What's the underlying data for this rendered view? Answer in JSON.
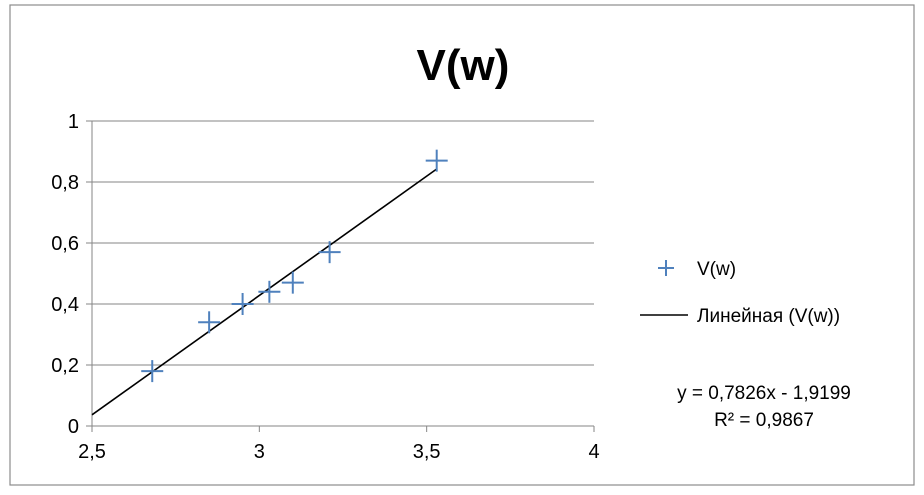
{
  "chart_data": {
    "type": "scatter",
    "title": "V(w)",
    "xlabel": "",
    "ylabel": "",
    "xlim": [
      2.5,
      4
    ],
    "ylim": [
      0,
      1
    ],
    "x_ticks": [
      2.5,
      3,
      3.5,
      4
    ],
    "x_tick_labels": [
      "2,5",
      "3",
      "3,5",
      "4"
    ],
    "y_ticks": [
      0,
      0.2,
      0.4,
      0.6,
      0.8,
      1
    ],
    "y_tick_labels": [
      "0",
      "0,2",
      "0,4",
      "0,6",
      "0,8",
      "1"
    ],
    "grid": "horizontal",
    "legend_position": "right",
    "series": [
      {
        "name": "V(w)",
        "marker": "plus",
        "color": "#4f81bd",
        "x": [
          2.68,
          2.85,
          2.95,
          3.03,
          3.1,
          3.21,
          3.53
        ],
        "y": [
          0.18,
          0.34,
          0.4,
          0.44,
          0.47,
          0.57,
          0.87
        ]
      }
    ],
    "trendline": {
      "name": "Линейная (V(w))",
      "color": "#000000",
      "slope": 0.7826,
      "intercept": -1.9199,
      "x_range": [
        2.5,
        3.53
      ],
      "equation": "y = 0,7826x - 1,9199",
      "r_squared": "R² = 0,9867"
    }
  }
}
